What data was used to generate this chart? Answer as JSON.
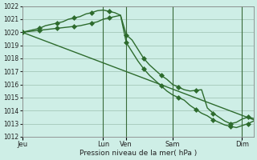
{
  "background_color": "#ceeee6",
  "grid_color": "#aaccbf",
  "line_color": "#2d6b2d",
  "xlabel": "Pression niveau de la mer( hPa )",
  "ylim": [
    1012,
    1022
  ],
  "yticks": [
    1012,
    1013,
    1014,
    1015,
    1016,
    1017,
    1018,
    1019,
    1020,
    1021,
    1022
  ],
  "xlim": [
    0,
    40
  ],
  "x_tick_positions": [
    0,
    14,
    18,
    26,
    38
  ],
  "x_tick_labels": [
    "Jeu",
    "Lun",
    "Ven",
    "Sam",
    "Dim"
  ],
  "vlines": [
    14,
    18,
    26,
    38
  ],
  "series1_x": [
    0,
    1,
    2,
    3,
    4,
    5,
    6,
    7,
    8,
    9,
    10,
    11,
    12,
    13,
    14,
    15,
    16,
    17,
    18,
    19,
    20,
    21,
    22,
    23,
    24,
    25,
    26,
    27,
    28,
    29,
    30,
    31,
    32,
    33,
    34,
    35,
    36,
    37,
    38,
    39,
    40
  ],
  "series1_y": [
    1020.0,
    1020.1,
    1020.2,
    1020.3,
    1020.5,
    1020.6,
    1020.7,
    1020.8,
    1021.0,
    1021.1,
    1021.2,
    1021.4,
    1021.5,
    1021.65,
    1021.7,
    1021.6,
    1021.5,
    1021.3,
    1019.8,
    1019.4,
    1018.7,
    1018.0,
    1017.5,
    1017.1,
    1016.7,
    1016.4,
    1016.0,
    1015.8,
    1015.6,
    1015.5,
    1015.55,
    1015.6,
    1014.2,
    1013.8,
    1013.5,
    1013.2,
    1013.0,
    1013.1,
    1013.35,
    1013.5,
    1013.4
  ],
  "series2_x": [
    0,
    1,
    2,
    3,
    4,
    5,
    6,
    7,
    8,
    9,
    10,
    11,
    12,
    13,
    14,
    15,
    16,
    17,
    18,
    19,
    20,
    21,
    22,
    23,
    24,
    25,
    26,
    27,
    28,
    29,
    30,
    31,
    32,
    33,
    34,
    35,
    36,
    37,
    38,
    39,
    40
  ],
  "series2_y": [
    1020.0,
    1020.05,
    1020.1,
    1020.15,
    1020.2,
    1020.25,
    1020.3,
    1020.35,
    1020.4,
    1020.45,
    1020.5,
    1020.6,
    1020.7,
    1020.8,
    1021.0,
    1021.1,
    1021.2,
    1021.3,
    1019.2,
    1018.5,
    1017.8,
    1017.2,
    1016.7,
    1016.3,
    1015.9,
    1015.5,
    1015.2,
    1015.0,
    1014.8,
    1014.4,
    1014.1,
    1013.8,
    1013.6,
    1013.3,
    1013.1,
    1012.9,
    1012.8,
    1012.7,
    1012.85,
    1013.0,
    1013.2
  ],
  "series3_x": [
    0,
    40
  ],
  "series3_y": [
    1020.0,
    1013.3
  ],
  "marker_size": 3,
  "marker_interval": 3,
  "linewidth": 1.0
}
